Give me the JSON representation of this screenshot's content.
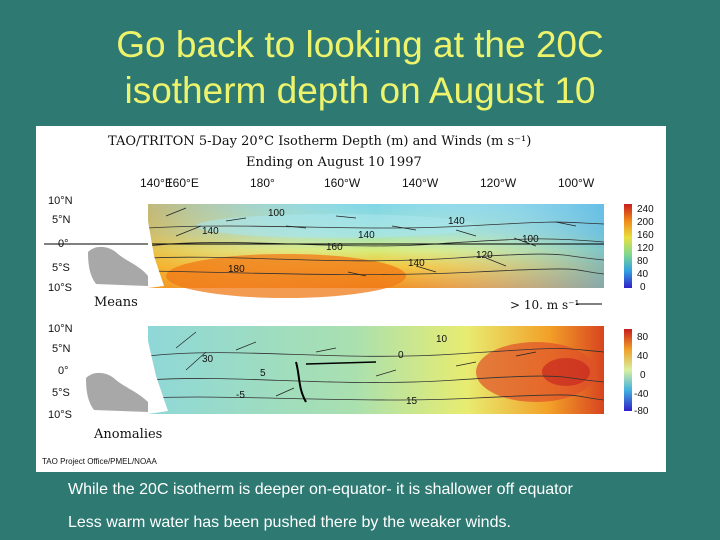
{
  "slide": {
    "title_line1": "Go back to looking at the 20C",
    "title_line2": "isotherm depth on August 10",
    "caption_line1": "While the 20C isotherm is deeper on-equator- it is shallower off equator",
    "caption_line2": "Less  warm water has been pushed there by the weaker winds."
  },
  "figure": {
    "title_line1": "TAO/TRITON 5-Day 20°C Isotherm Depth (m) and Winds (m s⁻¹)",
    "title_line2": "Ending on August 10 1997",
    "lon_labels": [
      "140°E",
      "160°E",
      "180°",
      "160°W",
      "140°W",
      "120°W",
      "100°W"
    ],
    "lat_labels_top": [
      "10°N",
      "5°N",
      "0°",
      "5°S",
      "10°S"
    ],
    "lat_labels_bottom": [
      "10°N",
      "5°N",
      "0°",
      "5°S",
      "10°S"
    ],
    "means_label": "Means",
    "anomalies_label": "Anomalies",
    "wind_scale_label": "> 10. m s⁻¹",
    "credit": "TAO Project Office/PMEL/NOAA",
    "means_colorbar_ticks": [
      "240",
      "200",
      "160",
      "120",
      "80",
      "40",
      "0"
    ],
    "anom_colorbar_ticks": [
      "80",
      "40",
      "0",
      "-40",
      "-80"
    ],
    "means_contour_labels": [
      "100",
      "140",
      "140",
      "160",
      "180",
      "140",
      "100",
      "120",
      "140"
    ],
    "anom_contour_labels": [
      "30",
      "5",
      "0",
      "10",
      "15",
      "-5"
    ],
    "colors": {
      "slide_bg": "#2e7a73",
      "title": "#eef36c",
      "caption": "#ffffff"
    }
  }
}
